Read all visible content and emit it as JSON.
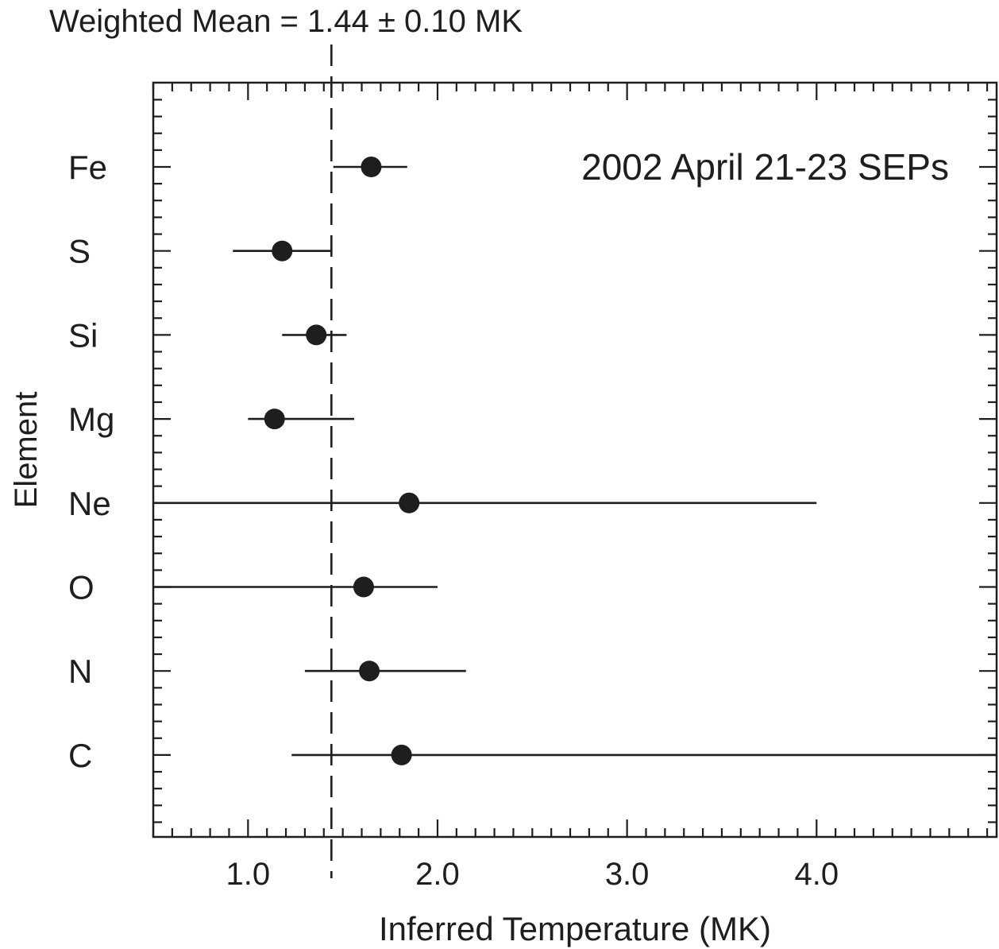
{
  "chart_data": {
    "type": "scatter",
    "title": "2002 April 21-23 SEPs",
    "xlabel": "Inferred Temperature (MK)",
    "ylabel": "Element",
    "xlim": [
      0.5,
      4.95
    ],
    "x_ticks": [
      1.0,
      2.0,
      3.0,
      4.0
    ],
    "x_tick_labels": [
      "1.0",
      "2.0",
      "3.0",
      "4.0"
    ],
    "x_minor_step": 0.1,
    "y_minor_per_category": 5,
    "grid": false,
    "categories": [
      "Fe",
      "S",
      "Si",
      "Mg",
      "Ne",
      "O",
      "N",
      "C"
    ],
    "series": [
      {
        "points": [
          {
            "element": "Fe",
            "x": 1.65,
            "xerr_low": 1.45,
            "xerr_high": 1.84
          },
          {
            "element": "S",
            "x": 1.18,
            "xerr_low": 0.92,
            "xerr_high": 1.44
          },
          {
            "element": "Si",
            "x": 1.36,
            "xerr_low": 1.18,
            "xerr_high": 1.52
          },
          {
            "element": "Mg",
            "x": 1.14,
            "xerr_low": 1.0,
            "xerr_high": 1.56
          },
          {
            "element": "Ne",
            "x": 1.85,
            "xerr_low": 0.5,
            "xerr_high": 4.0
          },
          {
            "element": "O",
            "x": 1.61,
            "xerr_low": 0.5,
            "xerr_high": 2.0
          },
          {
            "element": "N",
            "x": 1.64,
            "xerr_low": 1.3,
            "xerr_high": 2.15
          },
          {
            "element": "C",
            "x": 1.81,
            "xerr_low": 1.23,
            "xerr_high": 4.95
          }
        ]
      }
    ],
    "annotation": "Weighted Mean = 1.44 ± 0.10 MK",
    "weighted_mean": 1.44,
    "weighted_mean_err": 0.1
  },
  "colors": {
    "ink": "#1e1e1e",
    "background": "#ffffff"
  }
}
